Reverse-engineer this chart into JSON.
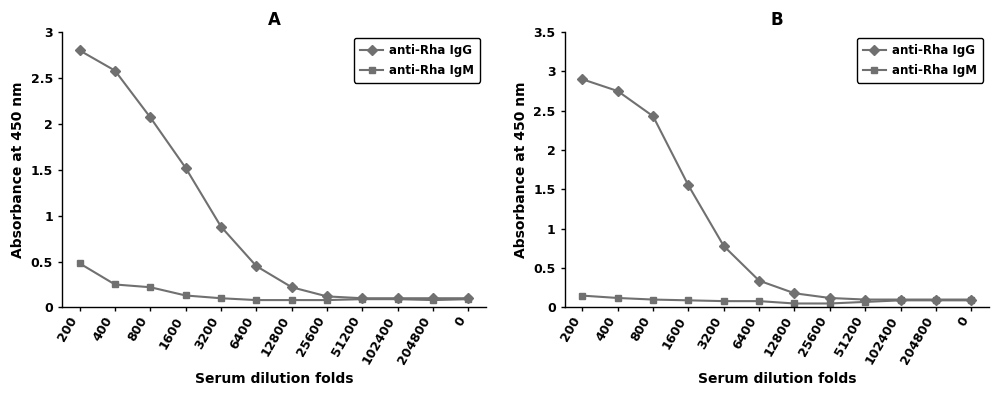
{
  "x_labels": [
    "200",
    "400",
    "800",
    "1600",
    "3200",
    "6400",
    "12800",
    "25600",
    "51200",
    "102400",
    "204800",
    "0"
  ],
  "panel_A": {
    "title": "A",
    "IgG": [
      2.8,
      2.58,
      2.07,
      1.52,
      0.88,
      0.45,
      0.22,
      0.12,
      0.1,
      0.1,
      0.1,
      0.1
    ],
    "IgM": [
      0.48,
      0.25,
      0.22,
      0.13,
      0.1,
      0.08,
      0.08,
      0.08,
      0.09,
      0.09,
      0.08,
      0.09
    ],
    "ylim": [
      0,
      3.0
    ],
    "yticks": [
      0,
      0.5,
      1.0,
      1.5,
      2.0,
      2.5,
      3.0
    ],
    "ytick_labels": [
      "0",
      "0.5",
      "1",
      "1.5",
      "2",
      "2.5",
      "3"
    ]
  },
  "panel_B": {
    "title": "B",
    "IgG": [
      2.9,
      2.75,
      2.43,
      1.55,
      0.78,
      0.34,
      0.18,
      0.12,
      0.1,
      0.1,
      0.1,
      0.1
    ],
    "IgM": [
      0.15,
      0.12,
      0.1,
      0.09,
      0.08,
      0.08,
      0.05,
      0.05,
      0.07,
      0.09,
      0.09,
      0.09
    ],
    "ylim": [
      0,
      3.5
    ],
    "yticks": [
      0,
      0.5,
      1.0,
      1.5,
      2.0,
      2.5,
      3.0,
      3.5
    ],
    "ytick_labels": [
      "0",
      "0.5",
      "1",
      "1.5",
      "2",
      "2.5",
      "3",
      "3.5"
    ]
  },
  "line_color": "#707070",
  "marker_IgG": "D",
  "marker_IgM": "s",
  "markersize": 5,
  "linewidth": 1.5,
  "xlabel": "Serum dilution folds",
  "ylabel": "Absorbance at 450 nm",
  "legend_IgG": "anti-Rha IgG",
  "legend_IgM": "anti-Rha IgM",
  "bg_color": "#ffffff",
  "fontsize_label": 10,
  "fontsize_tick": 9,
  "fontsize_title": 12,
  "fontsize_legend": 8.5,
  "xtick_rotation": 60
}
